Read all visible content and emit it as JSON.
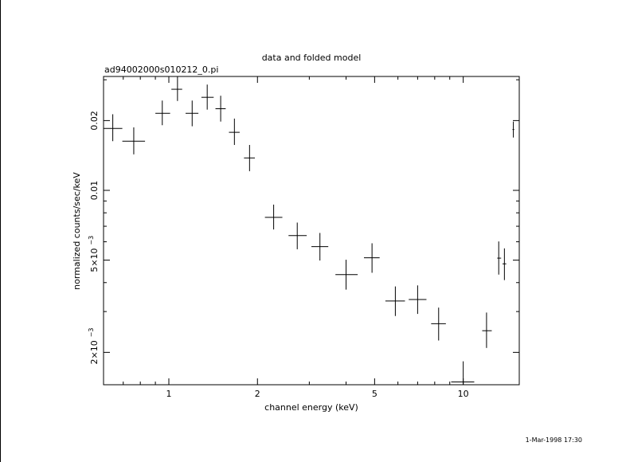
{
  "chart_data": {
    "type": "scatter",
    "title": "data and folded model",
    "subtitle": "ad94002000s010212_0.pi",
    "xlabel": "channel energy (keV)",
    "ylabel": "normalized counts/sec/keV",
    "xscale": "log",
    "yscale": "log",
    "xlim": [
      0.6,
      15.5
    ],
    "ylim": [
      0.00145,
      0.031
    ],
    "x_ticks": [
      "1",
      "2",
      "5",
      "10"
    ],
    "y_ticks": [
      {
        "mantissa": "0.02",
        "exponent": ""
      },
      {
        "mantissa": "0.01",
        "exponent": ""
      },
      {
        "mantissa": "5×10",
        "exponent": "−3"
      },
      {
        "mantissa": "2×10",
        "exponent": "−3"
      }
    ],
    "grid": false,
    "legend": "none",
    "series": [
      {
        "style": "crosses (x and y error bars)",
        "points": [
          {
            "x": 0.645,
            "xlo": 0.6,
            "xhi": 0.695,
            "y": 0.0185,
            "ylo": 0.0163,
            "yhi": 0.0213
          },
          {
            "x": 0.76,
            "xlo": 0.695,
            "xhi": 0.83,
            "y": 0.0163,
            "ylo": 0.0143,
            "yhi": 0.0187
          },
          {
            "x": 0.95,
            "xlo": 0.9,
            "xhi": 1.01,
            "y": 0.0215,
            "ylo": 0.0191,
            "yhi": 0.0244
          },
          {
            "x": 1.07,
            "xlo": 1.02,
            "xhi": 1.11,
            "y": 0.0273,
            "ylo": 0.0243,
            "yhi": 0.031
          },
          {
            "x": 1.2,
            "xlo": 1.14,
            "xhi": 1.26,
            "y": 0.0215,
            "ylo": 0.0189,
            "yhi": 0.0244
          },
          {
            "x": 1.35,
            "xlo": 1.29,
            "xhi": 1.42,
            "y": 0.0252,
            "ylo": 0.0223,
            "yhi": 0.0286
          },
          {
            "x": 1.5,
            "xlo": 1.44,
            "xhi": 1.56,
            "y": 0.0225,
            "ylo": 0.0198,
            "yhi": 0.0256
          },
          {
            "x": 1.67,
            "xlo": 1.6,
            "xhi": 1.74,
            "y": 0.0178,
            "ylo": 0.0157,
            "yhi": 0.0204
          },
          {
            "x": 1.88,
            "xlo": 1.8,
            "xhi": 1.96,
            "y": 0.0138,
            "ylo": 0.0121,
            "yhi": 0.0157
          },
          {
            "x": 2.27,
            "xlo": 2.12,
            "xhi": 2.43,
            "y": 0.00765,
            "ylo": 0.00678,
            "yhi": 0.00868
          },
          {
            "x": 2.73,
            "xlo": 2.55,
            "xhi": 2.94,
            "y": 0.00638,
            "ylo": 0.00557,
            "yhi": 0.00726
          },
          {
            "x": 3.26,
            "xlo": 3.05,
            "xhi": 3.48,
            "y": 0.00572,
            "ylo": 0.00498,
            "yhi": 0.00655
          },
          {
            "x": 4.0,
            "xlo": 3.68,
            "xhi": 4.38,
            "y": 0.00433,
            "ylo": 0.00373,
            "yhi": 0.00502
          },
          {
            "x": 4.9,
            "xlo": 4.6,
            "xhi": 5.2,
            "y": 0.00512,
            "ylo": 0.00441,
            "yhi": 0.00591
          },
          {
            "x": 5.88,
            "xlo": 5.44,
            "xhi": 6.34,
            "y": 0.00333,
            "ylo": 0.00287,
            "yhi": 0.00385
          },
          {
            "x": 7.0,
            "xlo": 6.53,
            "xhi": 7.5,
            "y": 0.00338,
            "ylo": 0.00293,
            "yhi": 0.00389
          },
          {
            "x": 8.25,
            "xlo": 7.78,
            "xhi": 8.73,
            "y": 0.00266,
            "ylo": 0.00225,
            "yhi": 0.00312
          },
          {
            "x": 10.0,
            "xlo": 9.1,
            "xhi": 10.9,
            "y": 0.00149,
            "ylo": 0.00145,
            "yhi": 0.00183
          },
          {
            "x": 12.0,
            "xlo": 11.6,
            "xhi": 12.5,
            "y": 0.00248,
            "ylo": 0.00209,
            "yhi": 0.00297
          },
          {
            "x": 13.2,
            "xlo": 13.05,
            "xhi": 13.45,
            "y": 0.0051,
            "ylo": 0.00433,
            "yhi": 0.00602
          },
          {
            "x": 13.8,
            "xlo": 13.6,
            "xhi": 14.0,
            "y": 0.00482,
            "ylo": 0.0041,
            "yhi": 0.00562
          },
          {
            "x": 14.8,
            "xlo": 14.7,
            "xhi": 14.9,
            "y": 0.0183,
            "ylo": 0.0169,
            "yhi": 0.0198
          }
        ]
      }
    ]
  },
  "timestamp": "1-Mar-1998 17:30"
}
